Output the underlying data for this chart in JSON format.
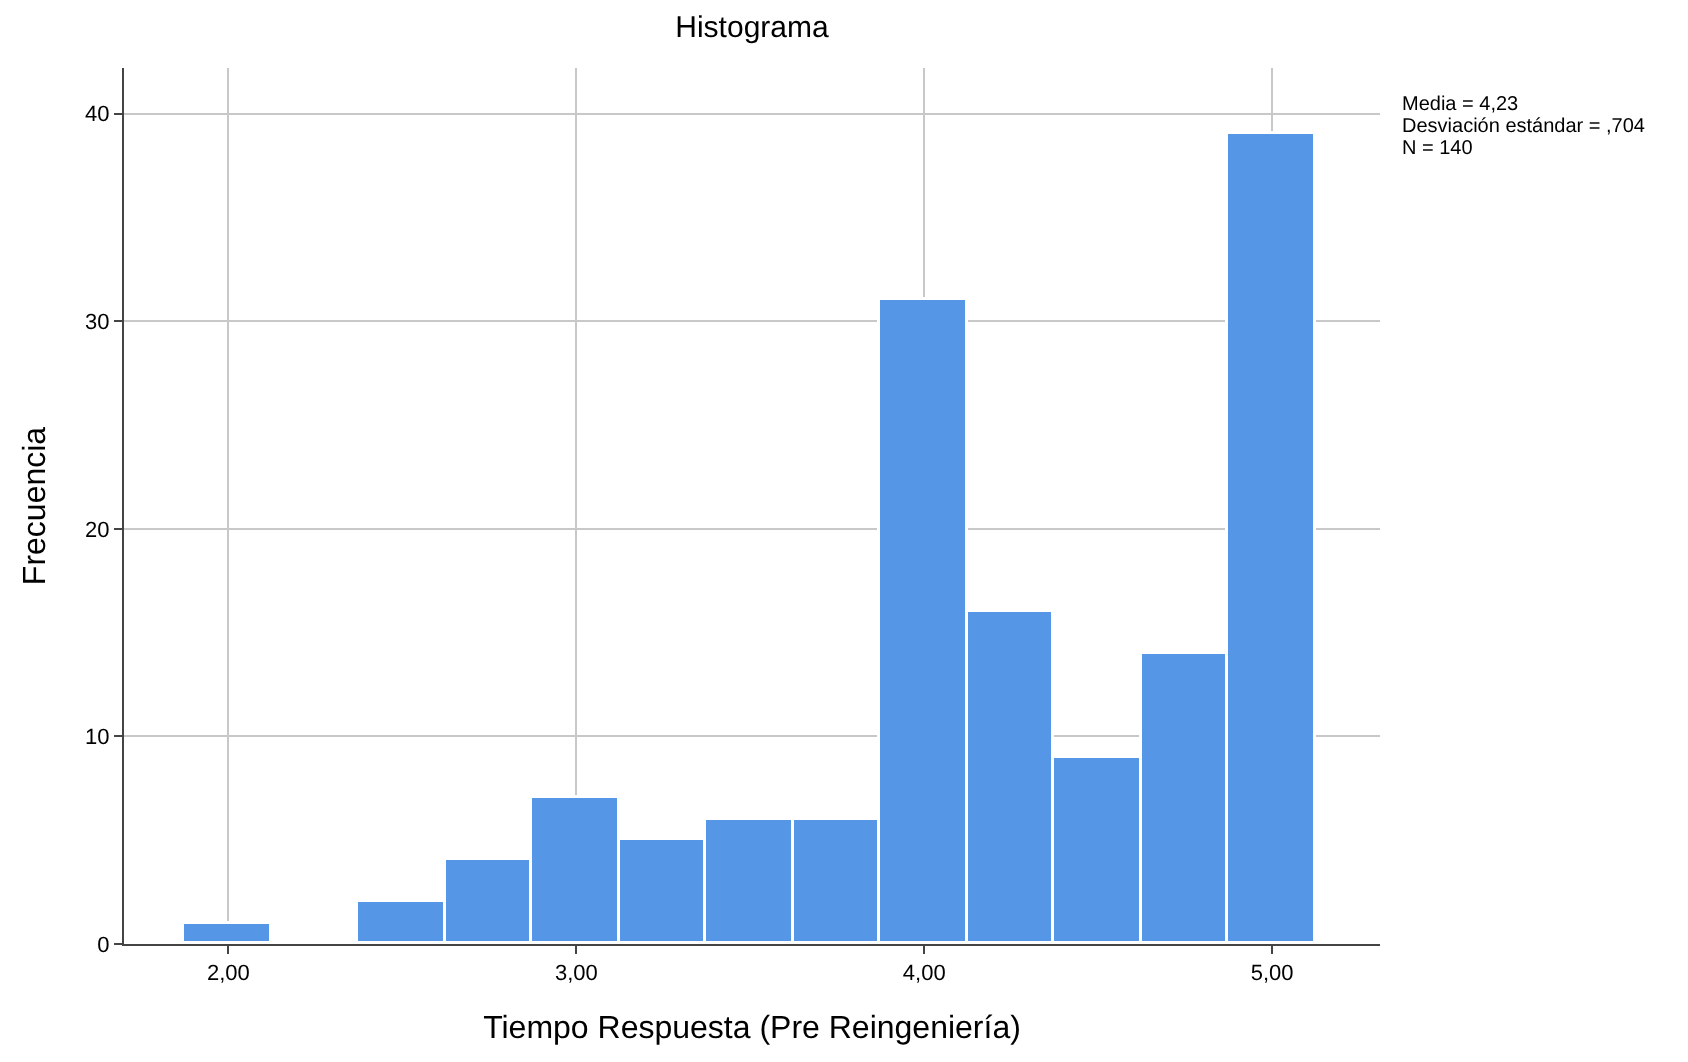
{
  "chart_data": {
    "type": "histogram",
    "title": "Histograma",
    "xlabel": "Tiempo Respuesta (Pre Reingeniería)",
    "ylabel": "Frecuencia",
    "bins": [
      1.875,
      2.125,
      2.375,
      2.625,
      2.875,
      3.125,
      3.375,
      3.625,
      3.875,
      4.125,
      4.375,
      4.625,
      4.875,
      5.125
    ],
    "values": [
      1,
      0,
      2,
      4,
      7,
      5,
      6,
      6,
      31,
      16,
      9,
      14,
      39
    ],
    "color": "#5596e6",
    "xlim": [
      1.7,
      5.31
    ],
    "ylim": [
      0,
      42.2
    ],
    "xticks": [
      {
        "value": 2,
        "label": "2,00"
      },
      {
        "value": 3,
        "label": "3,00"
      },
      {
        "value": 4,
        "label": "4,00"
      },
      {
        "value": 5,
        "label": "5,00"
      }
    ],
    "yticks": [
      0,
      10,
      20,
      30,
      40
    ],
    "grid": true,
    "annotations": [
      "Media = 4,23",
      "Desviación estándar = ,704",
      "N = 140"
    ]
  }
}
